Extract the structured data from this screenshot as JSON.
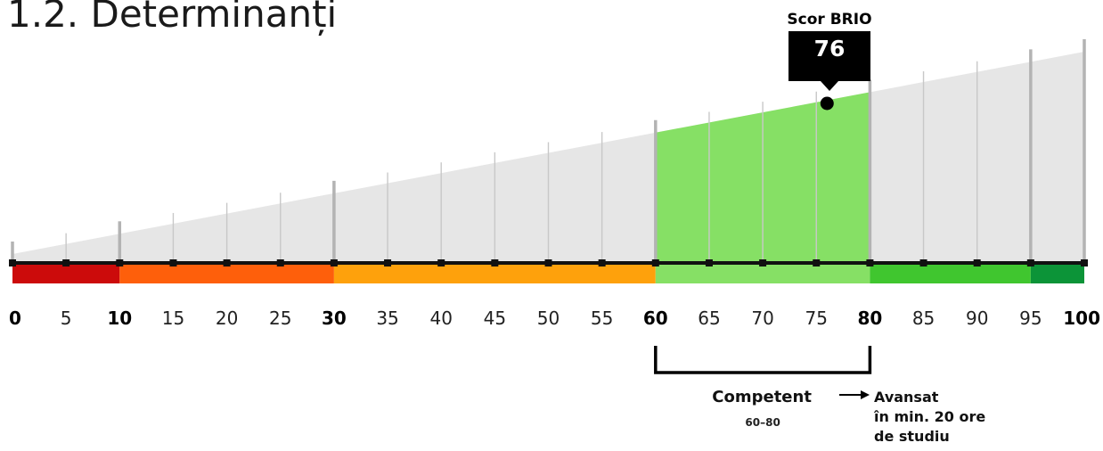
{
  "title": "1.2. Determinanți",
  "score": {
    "label": "Scor BRIO",
    "value": 76
  },
  "competence": {
    "title": "Competent",
    "range_label": "60–80",
    "range": [
      60,
      80
    ]
  },
  "next_level": {
    "lines": [
      "Avansat",
      "în min. 20 ore",
      "de studiu"
    ]
  },
  "chart_data": {
    "type": "bar",
    "title": "",
    "xlabel": "",
    "ylabel": "",
    "xlim": [
      0,
      100
    ],
    "ticks": [
      0,
      5,
      10,
      15,
      20,
      25,
      30,
      35,
      40,
      45,
      50,
      55,
      60,
      65,
      70,
      75,
      80,
      85,
      90,
      95,
      100
    ],
    "tick_labels": [
      "0",
      "5",
      "10",
      "15",
      "20",
      "25",
      "30",
      "35",
      "40",
      "45",
      "50",
      "55",
      "60",
      "65",
      "70",
      "75",
      "80",
      "85",
      "90",
      "95",
      "100"
    ],
    "major_ticks": [
      0,
      10,
      30,
      60,
      80,
      100
    ],
    "score": 76,
    "highlight_range": [
      60,
      80
    ],
    "bands": [
      {
        "from": 0,
        "to": 10,
        "color": "#cc0b0b"
      },
      {
        "from": 10,
        "to": 30,
        "color": "#fe5f0b"
      },
      {
        "from": 30,
        "to": 60,
        "color": "#fea10c"
      },
      {
        "from": 60,
        "to": 80,
        "color": "#86e065"
      },
      {
        "from": 80,
        "to": 95,
        "color": "#40c62f"
      },
      {
        "from": 95,
        "to": 100,
        "color": "#0c9438"
      }
    ],
    "wedge_color": "#e6e6e6",
    "highlight_color": "#86e065",
    "grid": true
  }
}
